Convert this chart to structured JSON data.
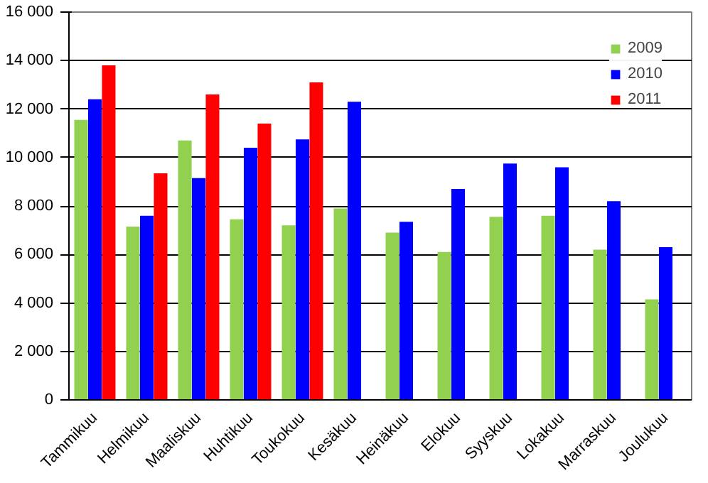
{
  "chart_data": {
    "type": "bar",
    "categories": [
      "Tammikuu",
      "Helmikuu",
      "Maaliskuu",
      "Huhtikuu",
      "Toukokuu",
      "Kesäkuu",
      "Heinäkuu",
      "Elokuu",
      "Syyskuu",
      "Lokakuu",
      "Marraskuu",
      "Joulukuu"
    ],
    "series": [
      {
        "name": "2009",
        "color": "#92d050",
        "values": [
          11550,
          7150,
          10700,
          7450,
          7200,
          7900,
          6900,
          6100,
          7550,
          7600,
          6200,
          4150
        ]
      },
      {
        "name": "2010",
        "color": "#0000ff",
        "values": [
          12400,
          7600,
          9150,
          10400,
          10750,
          12300,
          7350,
          8700,
          9750,
          9600,
          8200,
          6300
        ]
      },
      {
        "name": "2011",
        "color": "#ff0000",
        "values": [
          13800,
          9350,
          12600,
          11400,
          13100,
          null,
          null,
          null,
          null,
          null,
          null,
          null
        ]
      }
    ],
    "ylim": [
      0,
      16000
    ],
    "yticks": [
      0,
      {
        "value": 2000,
        "label": "2 000"
      },
      {
        "value": 4000,
        "label": "4 000"
      },
      {
        "value": 6000,
        "label": "6 000"
      },
      {
        "value": 8000,
        "label": "8 000"
      },
      {
        "value": 10000,
        "label": "10 000"
      },
      {
        "value": 12000,
        "label": "12 000"
      },
      {
        "value": 14000,
        "label": "14 000"
      },
      {
        "value": 16000,
        "label": "16 000"
      }
    ],
    "grid": "y",
    "legend": "top right"
  }
}
